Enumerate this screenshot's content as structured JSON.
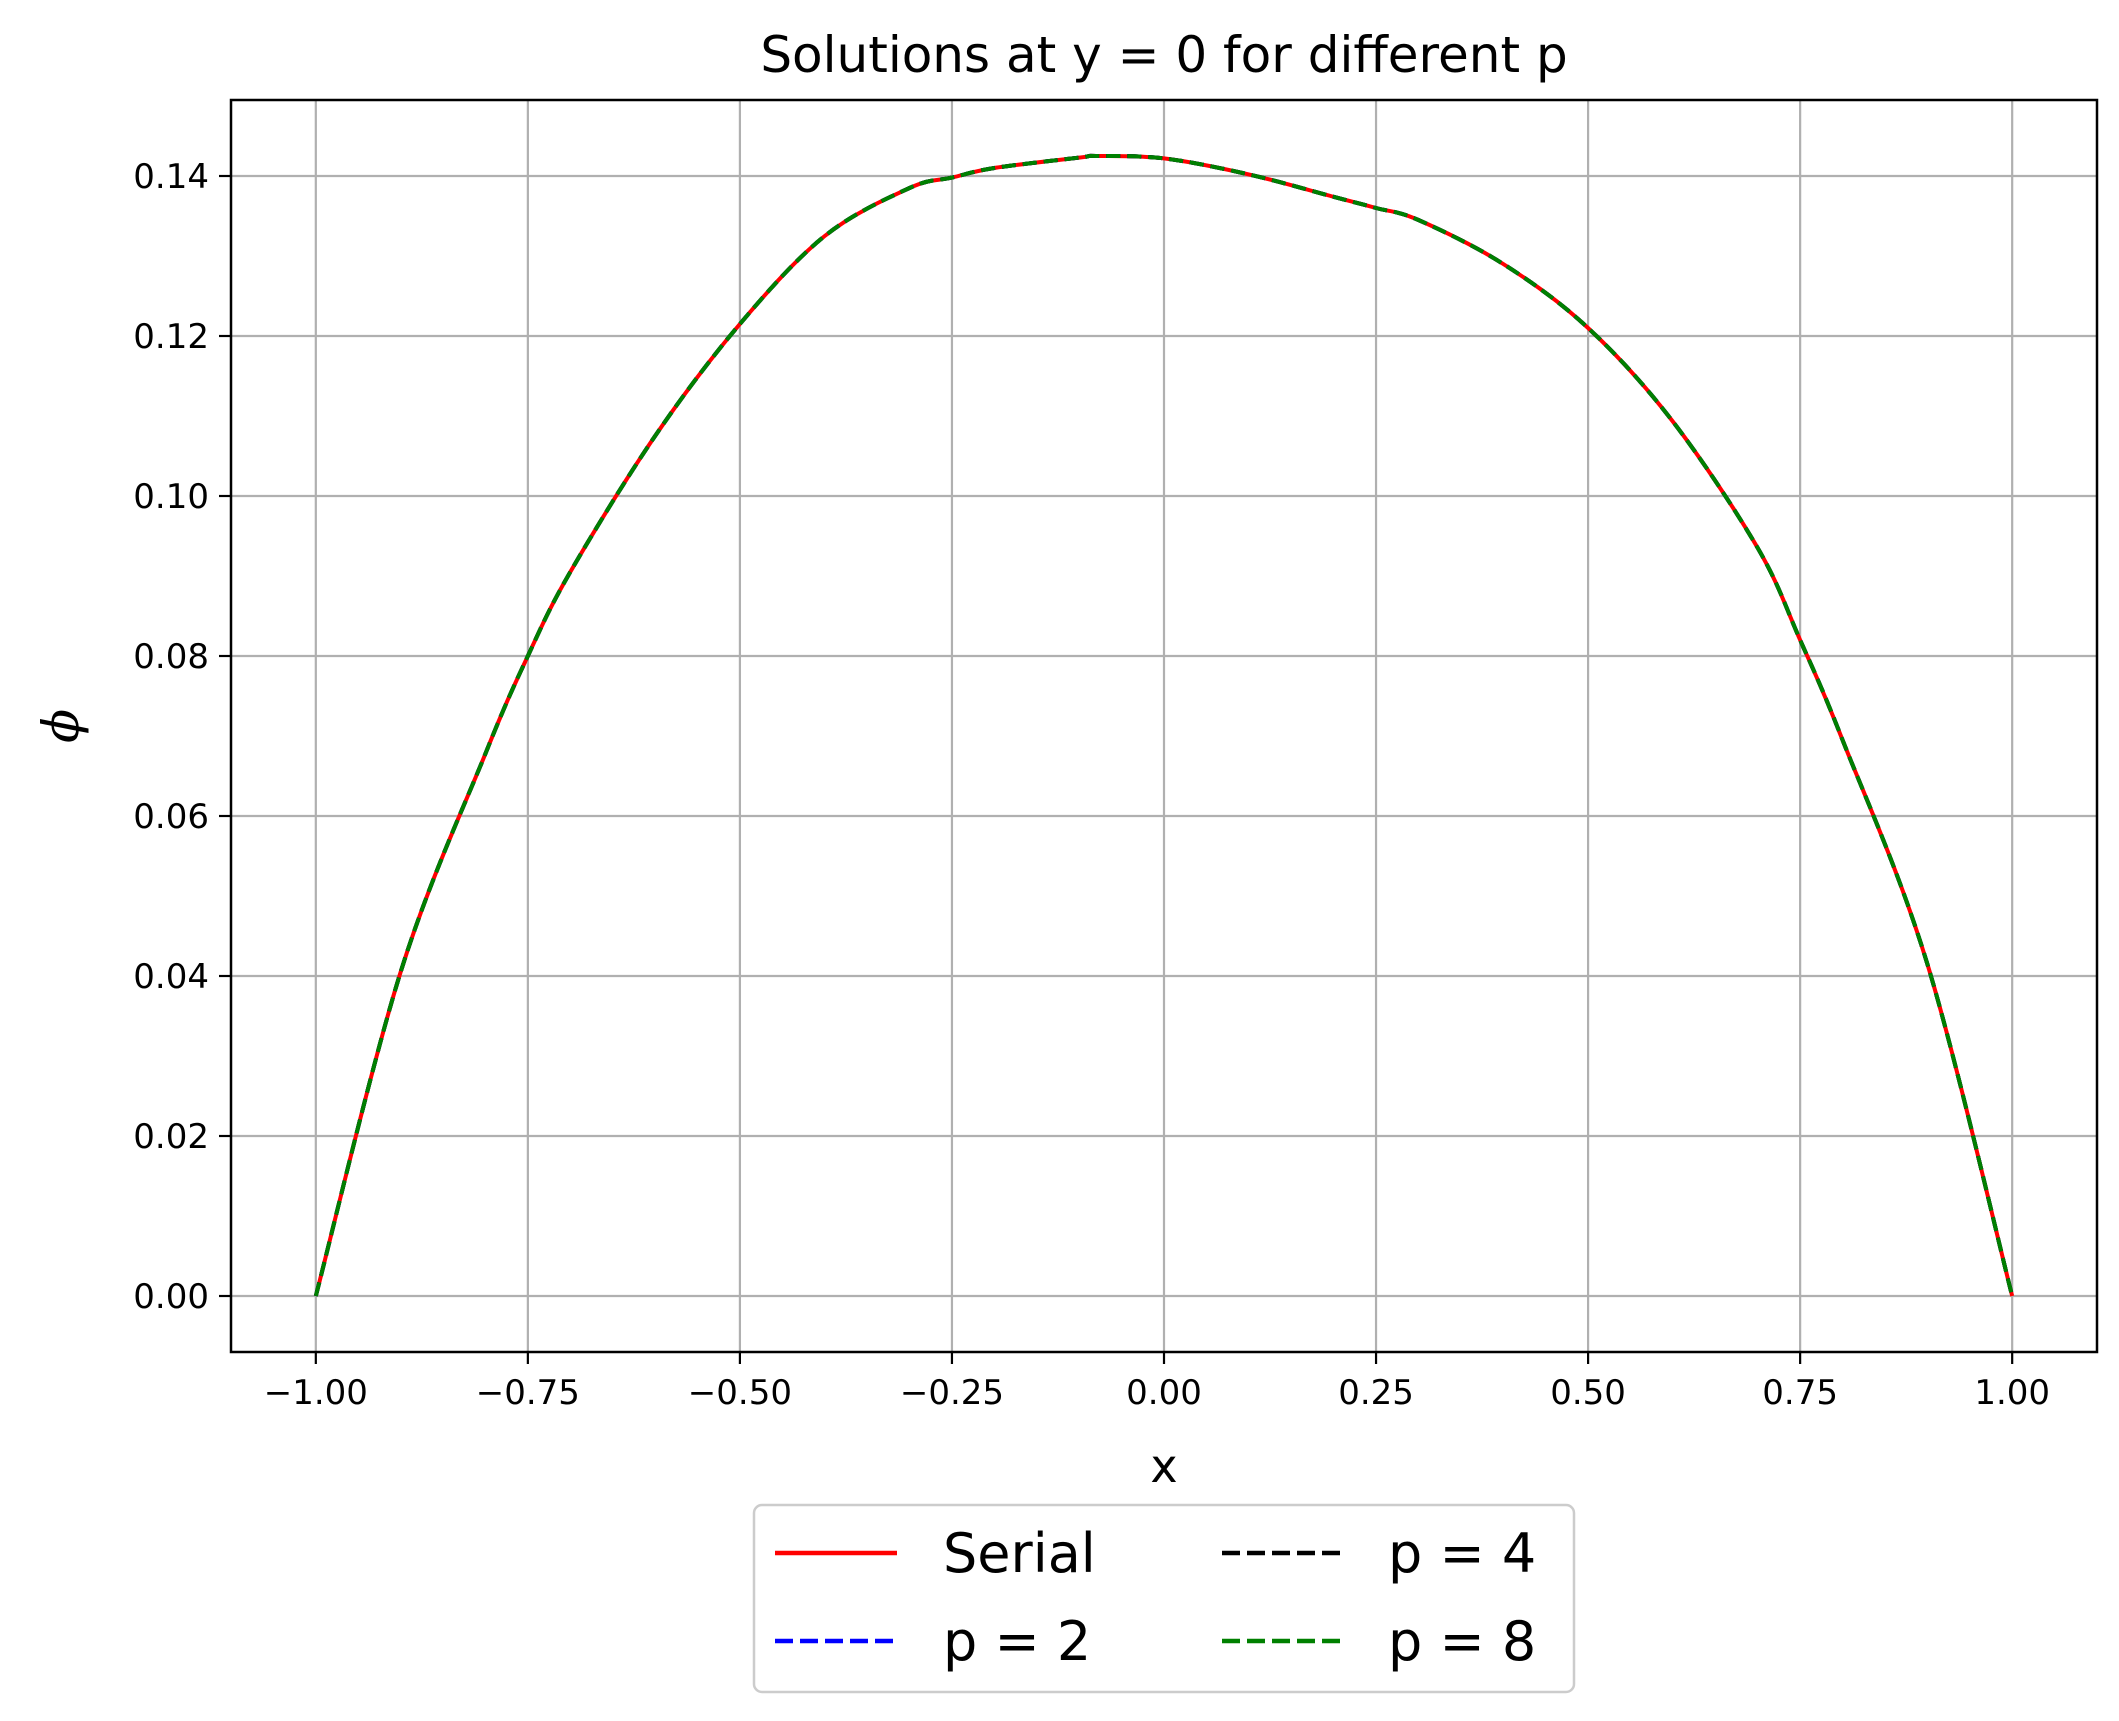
{
  "chart_data": {
    "type": "line",
    "title": "Solutions at y = 0 for different p",
    "xlabel": "x",
    "ylabel": "ϕ",
    "xlim": [
      -1.1,
      1.1
    ],
    "ylim": [
      -0.007,
      0.1495
    ],
    "xticks": [
      -1.0,
      -0.75,
      -0.5,
      -0.25,
      0.0,
      0.25,
      0.5,
      0.75,
      1.0
    ],
    "xtick_labels": [
      "−1.00",
      "−0.75",
      "−0.50",
      "−0.25",
      "0.00",
      "0.25",
      "0.50",
      "0.75",
      "1.00"
    ],
    "yticks": [
      0.0,
      0.02,
      0.04,
      0.06,
      0.08,
      0.1,
      0.12,
      0.14
    ],
    "ytick_labels": [
      "0.00",
      "0.02",
      "0.04",
      "0.06",
      "0.08",
      "0.10",
      "0.12",
      "0.14"
    ],
    "grid": true,
    "legend_placement": "below plot, centered, 2 columns",
    "x": [
      -1.0,
      -0.9,
      -0.8,
      -0.75,
      -0.7,
      -0.6,
      -0.5,
      -0.4,
      -0.3,
      -0.25,
      -0.2,
      -0.1,
      -0.08,
      0.0,
      0.1,
      0.2,
      0.25,
      0.3,
      0.4,
      0.5,
      0.6,
      0.7,
      0.75,
      0.8,
      0.9,
      1.0
    ],
    "series": [
      {
        "name": "Serial",
        "style": "solid",
        "color": "#ff0000",
        "y": [
          0.0,
          0.0405,
          0.0678,
          0.08,
          0.0905,
          0.1075,
          0.1215,
          0.1325,
          0.1385,
          0.1398,
          0.141,
          0.1423,
          0.1425,
          0.1422,
          0.1402,
          0.1374,
          0.136,
          0.1345,
          0.129,
          0.121,
          0.1093,
          0.0935,
          0.082,
          0.0695,
          0.0415,
          0.0
        ]
      },
      {
        "name": "p = 2",
        "style": "dashed",
        "color": "#0000ff",
        "y": [
          0.0,
          0.0405,
          0.0678,
          0.08,
          0.0905,
          0.1075,
          0.1215,
          0.1325,
          0.1385,
          0.1398,
          0.141,
          0.1423,
          0.1425,
          0.1422,
          0.1402,
          0.1374,
          0.136,
          0.1345,
          0.129,
          0.121,
          0.1093,
          0.0935,
          0.082,
          0.0695,
          0.0415,
          0.0
        ]
      },
      {
        "name": "p = 4",
        "style": "dashed",
        "color": "#000000",
        "y": [
          0.0,
          0.0405,
          0.0678,
          0.08,
          0.0905,
          0.1075,
          0.1215,
          0.1325,
          0.1385,
          0.1398,
          0.141,
          0.1423,
          0.1425,
          0.1422,
          0.1402,
          0.1374,
          0.136,
          0.1345,
          0.129,
          0.121,
          0.1093,
          0.0935,
          0.082,
          0.0695,
          0.0415,
          0.0
        ]
      },
      {
        "name": "p = 8",
        "style": "dashed",
        "color": "#008000",
        "y": [
          0.0,
          0.0405,
          0.0678,
          0.08,
          0.0905,
          0.1075,
          0.1215,
          0.1325,
          0.1385,
          0.1398,
          0.141,
          0.1423,
          0.1425,
          0.1422,
          0.1402,
          0.1374,
          0.136,
          0.1345,
          0.129,
          0.121,
          0.1093,
          0.0935,
          0.082,
          0.0695,
          0.0415,
          0.0
        ]
      }
    ],
    "legend_order": [
      "Serial",
      "p = 2",
      "p = 4",
      "p = 8"
    ]
  }
}
